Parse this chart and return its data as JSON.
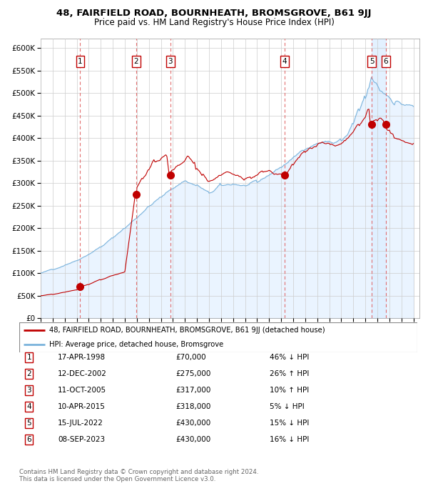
{
  "title": "48, FAIRFIELD ROAD, BOURNHEATH, BROMSGROVE, B61 9JJ",
  "subtitle": "Price paid vs. HM Land Registry's House Price Index (HPI)",
  "transactions": [
    {
      "num": 1,
      "date": 1998.29,
      "price": 70000
    },
    {
      "num": 2,
      "date": 2002.95,
      "price": 275000
    },
    {
      "num": 3,
      "date": 2005.78,
      "price": 317000
    },
    {
      "num": 4,
      "date": 2015.28,
      "price": 318000
    },
    {
      "num": 5,
      "date": 2022.54,
      "price": 430000
    },
    {
      "num": 6,
      "date": 2023.69,
      "price": 430000
    }
  ],
  "hpi_line_color": "#7ab3dc",
  "hpi_fill_color": "#ddeeff",
  "price_line_color": "#c00000",
  "price_dot_color": "#c00000",
  "vline_color": "#e06060",
  "box_edge_color": "#c00000",
  "ylim": [
    0,
    620000
  ],
  "xlim_min": 1995.0,
  "xlim_max": 2026.5,
  "yticks": [
    0,
    50000,
    100000,
    150000,
    200000,
    250000,
    300000,
    350000,
    400000,
    450000,
    500000,
    550000,
    600000
  ],
  "hatch_start": 2024.0,
  "shade_start": 2022.54,
  "shade_end": 2023.69,
  "legend_line1": "48, FAIRFIELD ROAD, BOURNHEATH, BROMSGROVE, B61 9JJ (detached house)",
  "legend_line2": "HPI: Average price, detached house, Bromsgrove",
  "footer1": "Contains HM Land Registry data © Crown copyright and database right 2024.",
  "footer2": "This data is licensed under the Open Government Licence v3.0.",
  "table_rows": [
    [
      "1",
      "17-APR-1998",
      "£70,000",
      "46% ↓ HPI"
    ],
    [
      "2",
      "12-DEC-2002",
      "£275,000",
      "26% ↑ HPI"
    ],
    [
      "3",
      "11-OCT-2005",
      "£317,000",
      "10% ↑ HPI"
    ],
    [
      "4",
      "10-APR-2015",
      "£318,000",
      "5% ↓ HPI"
    ],
    [
      "5",
      "15-JUL-2022",
      "£430,000",
      "15% ↓ HPI"
    ],
    [
      "6",
      "08-SEP-2023",
      "£430,000",
      "16% ↓ HPI"
    ]
  ]
}
